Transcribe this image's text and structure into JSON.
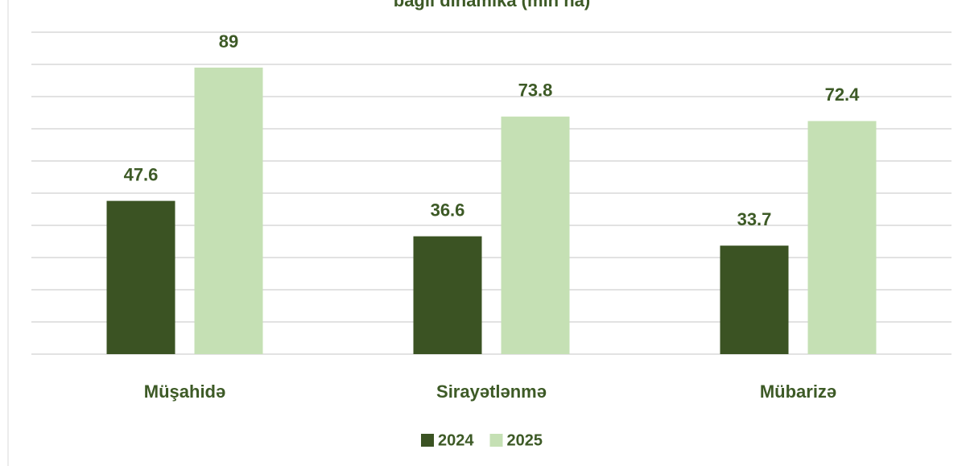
{
  "chart_data": {
    "type": "bar",
    "title": "bağlı dinamika (min ha)",
    "categories": [
      "Müşahidə",
      "Sirayətlənmə",
      "Mübarizə"
    ],
    "series": [
      {
        "name": "2024",
        "color": "#3b5323",
        "values": [
          47.6,
          36.6,
          33.7
        ]
      },
      {
        "name": "2025",
        "color": "#c5e0b4",
        "values": [
          89,
          73.8,
          72.4
        ]
      }
    ],
    "ylim": [
      0,
      100
    ],
    "yticks": [
      0,
      10,
      20,
      30,
      40,
      50,
      60,
      70,
      80,
      90,
      100
    ],
    "grid": true,
    "legend": "bottom"
  }
}
